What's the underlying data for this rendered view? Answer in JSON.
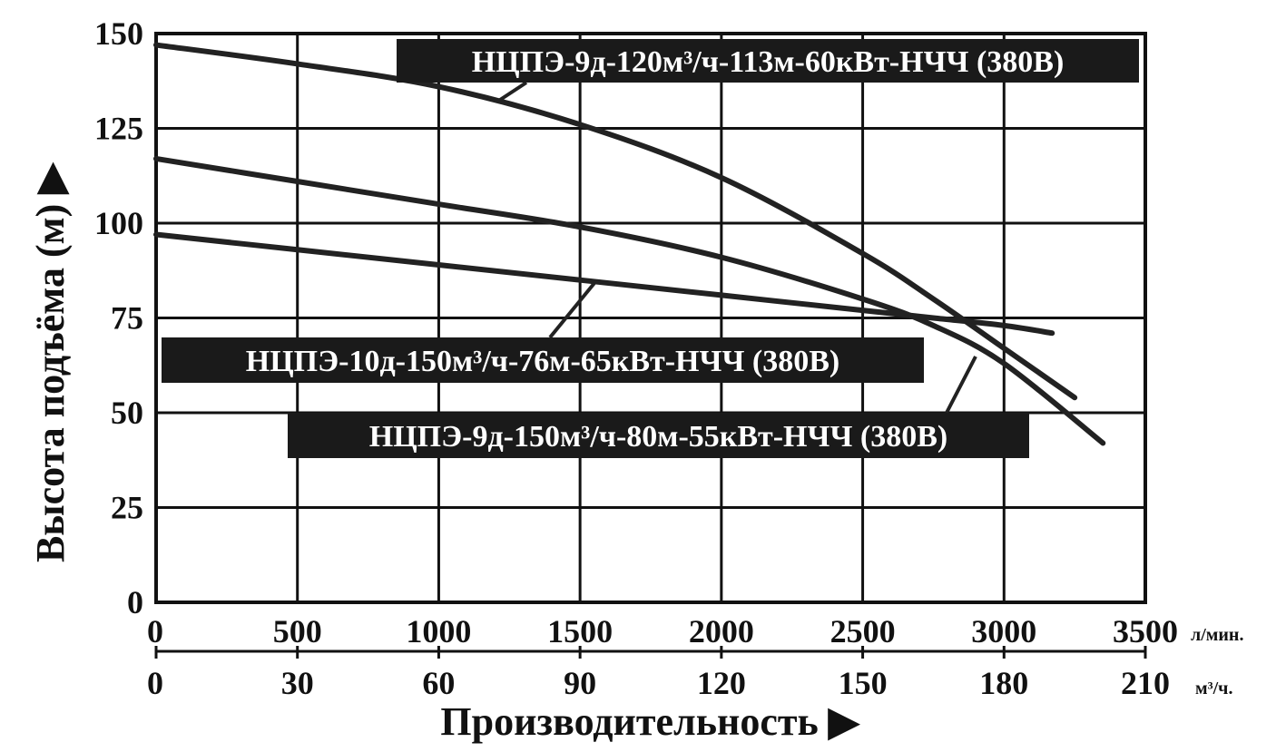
{
  "chart_data": {
    "type": "line",
    "ylabel": "Высота подъёма (м) ▶",
    "xlabel": "Производительность ▶",
    "ylim": [
      0,
      150
    ],
    "y_ticks": [
      0,
      25,
      50,
      75,
      100,
      125,
      150
    ],
    "x_primary": {
      "unit": "л/мин.",
      "lim": [
        0,
        3500
      ],
      "ticks": [
        0,
        500,
        1000,
        1500,
        2000,
        2500,
        3000,
        3500
      ]
    },
    "x_secondary": {
      "unit": "м³/ч.",
      "lim": [
        0,
        210
      ],
      "ticks": [
        0,
        30,
        60,
        90,
        120,
        150,
        180,
        210
      ]
    },
    "grid": true,
    "series": [
      {
        "name": "НЦПЭ-9д-120м³/ч-113м-60кВт-НЧЧ (380В)",
        "x": [
          0,
          500,
          1000,
          1500,
          2000,
          2500,
          2750,
          3000,
          3250
        ],
        "y": [
          147,
          142,
          136,
          126,
          112,
          92,
          80,
          67,
          54
        ]
      },
      {
        "name": "НЦПЭ-10д-150м³/ч-76м-65кВт-НЧЧ (380В)",
        "x": [
          0,
          500,
          1000,
          1500,
          2000,
          2500,
          2750,
          3000,
          3350
        ],
        "y": [
          117,
          111,
          105,
          99,
          91,
          80,
          73,
          63,
          42
        ]
      },
      {
        "name": "НЦПЭ-9д-150м³/ч-80м-55кВт-НЧЧ (380В)",
        "x": [
          0,
          500,
          1000,
          1500,
          2000,
          2500,
          2750,
          3000,
          3170
        ],
        "y": [
          97,
          93,
          89,
          85,
          81,
          77,
          75,
          73,
          71
        ]
      }
    ]
  }
}
